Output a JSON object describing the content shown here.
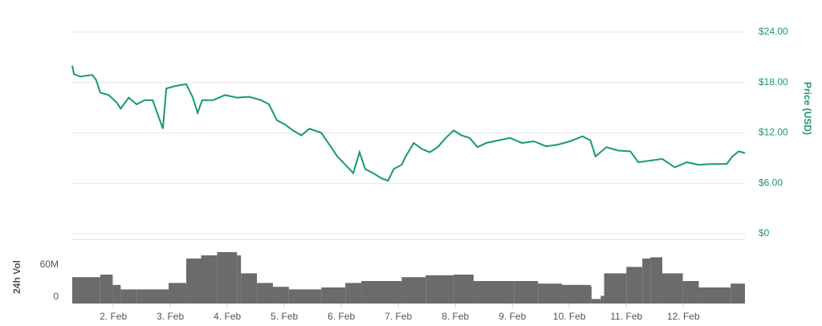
{
  "chart_data": [
    {
      "type": "line",
      "y_label": "Price (USD)",
      "color": "#179a6c",
      "grid": true,
      "x": [
        1.28,
        1.31,
        1.42,
        1.63,
        1.7,
        1.77,
        1.92,
        2.06,
        2.13,
        2.27,
        2.41,
        2.55,
        2.69,
        2.77,
        2.87,
        2.93,
        3.04,
        3.18,
        3.28,
        3.39,
        3.48,
        3.56,
        3.75,
        3.96,
        4.17,
        4.38,
        4.59,
        4.73,
        4.87,
        5.01,
        5.15,
        5.3,
        5.44,
        5.65,
        5.79,
        5.93,
        6.07,
        6.21,
        6.32,
        6.42,
        6.56,
        6.7,
        6.82,
        6.92,
        7.06,
        7.13,
        7.27,
        7.41,
        7.55,
        7.69,
        7.83,
        7.97,
        8.11,
        8.25,
        8.39,
        8.54,
        8.75,
        8.96,
        9.17,
        9.38,
        9.59,
        9.8,
        10.01,
        10.23,
        10.37,
        10.46,
        10.65,
        10.86,
        11.07,
        11.21,
        11.42,
        11.63,
        11.85,
        12.06,
        12.27,
        12.48,
        12.76,
        12.86,
        12.97,
        13.08
      ],
      "values": [
        20.0,
        19.0,
        18.7,
        18.9,
        18.3,
        16.8,
        16.5,
        15.6,
        14.9,
        16.2,
        15.4,
        15.9,
        15.9,
        14.4,
        12.5,
        17.3,
        17.5,
        17.7,
        17.8,
        16.3,
        14.4,
        15.9,
        15.9,
        16.5,
        16.2,
        16.3,
        15.9,
        15.4,
        13.5,
        13.0,
        12.3,
        11.7,
        12.5,
        12.0,
        10.6,
        9.2,
        8.2,
        7.2,
        9.7,
        7.7,
        7.2,
        6.6,
        6.3,
        7.7,
        8.2,
        9.2,
        10.8,
        10.1,
        9.7,
        10.3,
        11.4,
        12.3,
        11.7,
        11.4,
        10.3,
        10.8,
        11.1,
        11.4,
        10.8,
        11.0,
        10.4,
        10.6,
        11.0,
        11.6,
        11.1,
        9.2,
        10.3,
        9.9,
        9.8,
        8.5,
        8.7,
        8.9,
        7.9,
        8.5,
        8.2,
        8.3,
        8.3,
        9.2,
        9.8,
        9.6
      ],
      "xlim": [
        1.28,
        13.08
      ],
      "ylim": [
        0,
        24
      ],
      "yticks": [
        {
          "value": 0,
          "label": "$0"
        },
        {
          "value": 6,
          "label": "$6.00"
        },
        {
          "value": 12,
          "label": "$12.00"
        },
        {
          "value": 18,
          "label": "$18.00"
        },
        {
          "value": 24,
          "label": "$24.00"
        }
      ]
    },
    {
      "type": "bar",
      "y_label": "24h Vol",
      "color": "#6b6b6b",
      "x": [
        1.28,
        1.77,
        1.99,
        2.13,
        2.41,
        2.97,
        3.28,
        3.54,
        3.82,
        4.17,
        4.24,
        4.52,
        4.8,
        5.08,
        5.65,
        6.07,
        6.35,
        7.06,
        7.48,
        7.97,
        8.32,
        9.03,
        9.45,
        9.87,
        10.37,
        10.39,
        10.55,
        10.61,
        11.0,
        11.28,
        11.42,
        11.63,
        11.99,
        12.27,
        12.83
      ],
      "values": [
        41000000,
        45000000,
        29000000,
        22000000,
        22000000,
        32000000,
        70000000,
        75000000,
        80000000,
        75000000,
        47000000,
        32000000,
        26000000,
        22000000,
        25000000,
        32000000,
        35000000,
        41000000,
        44000000,
        45000000,
        35000000,
        35000000,
        31000000,
        29000000,
        27000000,
        7000000,
        12000000,
        47000000,
        57000000,
        70000000,
        72000000,
        47000000,
        35000000,
        25000000,
        31000000
      ],
      "xlim": [
        1.28,
        13.08
      ],
      "ylim": [
        0,
        100000000
      ],
      "yticks": [
        0,
        {
          "value": 60000000,
          "label": "60M"
        }
      ],
      "xticks": [
        {
          "value": 2,
          "label": "2. Feb"
        },
        {
          "value": 3,
          "label": "3. Feb"
        },
        {
          "value": 4,
          "label": "4. Feb"
        },
        {
          "value": 5,
          "label": "5. Feb"
        },
        {
          "value": 6,
          "label": "6. Feb"
        },
        {
          "value": 7,
          "label": "7. Feb"
        },
        {
          "value": 8,
          "label": "8. Feb"
        },
        {
          "value": 9,
          "label": "9. Feb"
        },
        {
          "value": 10,
          "label": "10. Feb"
        },
        {
          "value": 11,
          "label": "11. Feb"
        },
        {
          "value": 12,
          "label": "12. Feb"
        }
      ]
    }
  ]
}
